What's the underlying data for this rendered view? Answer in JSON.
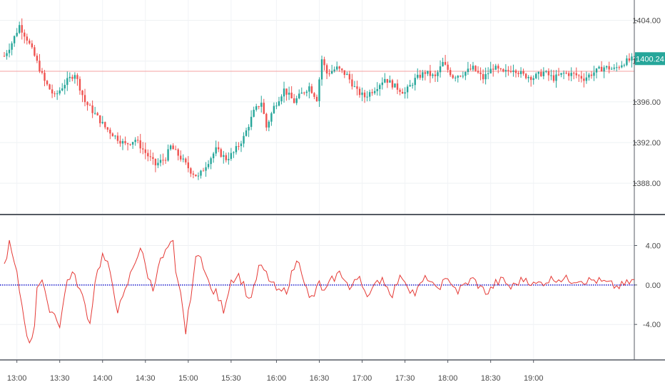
{
  "chart_data": [
    {
      "type": "candlestick",
      "panel": "price",
      "ylim": [
        1385.0,
        1406.0
      ],
      "y_ticks": [
        "1404.00",
        "1400.00",
        "1396.00",
        "1392.00",
        "1388.00"
      ],
      "y_tick_values": [
        1404,
        1400,
        1396,
        1392,
        1388
      ],
      "reference_line": 1399.0,
      "last_price_label": "1400.24",
      "last_price": 1400.24,
      "colors": {
        "up": "#26a69a",
        "down": "#ef5350",
        "reference": "#f4a0a0",
        "last_price_bg": "#26a69a"
      },
      "candle_path": [
        [
          0,
          1400.5
        ],
        [
          3,
          1401.8
        ],
        [
          6,
          1403.5
        ],
        [
          9,
          1402.2
        ],
        [
          12,
          1400.5
        ],
        [
          16,
          1398.0
        ],
        [
          20,
          1396.5
        ],
        [
          24,
          1397.8
        ],
        [
          28,
          1398.8
        ],
        [
          32,
          1396.0
        ],
        [
          36,
          1394.8
        ],
        [
          40,
          1393.5
        ],
        [
          44,
          1392.6
        ],
        [
          48,
          1391.8
        ],
        [
          52,
          1392.3
        ],
        [
          56,
          1391.0
        ],
        [
          60,
          1389.8
        ],
        [
          64,
          1390.5
        ],
        [
          66,
          1391.6
        ],
        [
          70,
          1390.5
        ],
        [
          74,
          1389.2
        ],
        [
          77,
          1388.6
        ],
        [
          80,
          1389.8
        ],
        [
          84,
          1391.3
        ],
        [
          88,
          1390.4
        ],
        [
          91,
          1391.0
        ],
        [
          95,
          1392.5
        ],
        [
          99,
          1395.0
        ],
        [
          102,
          1396.0
        ],
        [
          104,
          1393.5
        ],
        [
          107,
          1395.5
        ],
        [
          111,
          1397.2
        ],
        [
          115,
          1396.0
        ],
        [
          118,
          1396.8
        ],
        [
          121,
          1397.5
        ],
        [
          124,
          1396.3
        ],
        [
          126,
          1400.2
        ],
        [
          128,
          1398.8
        ],
        [
          132,
          1399.3
        ],
        [
          136,
          1398.6
        ],
        [
          140,
          1397.0
        ],
        [
          143,
          1396.5
        ],
        [
          147,
          1397.3
        ],
        [
          151,
          1398.3
        ],
        [
          155,
          1397.5
        ],
        [
          159,
          1396.9
        ],
        [
          163,
          1398.2
        ],
        [
          167,
          1398.9
        ],
        [
          171,
          1398.4
        ],
        [
          174,
          1399.8
        ],
        [
          178,
          1398.5
        ],
        [
          182,
          1398.8
        ],
        [
          186,
          1399.3
        ],
        [
          190,
          1398.3
        ],
        [
          194,
          1399.4
        ],
        [
          198,
          1398.8
        ],
        [
          202,
          1399.3
        ],
        [
          206,
          1398.6
        ],
        [
          210,
          1398.4
        ],
        [
          214,
          1398.9
        ],
        [
          218,
          1398.3
        ],
        [
          222,
          1398.8
        ],
        [
          226,
          1398.7
        ],
        [
          230,
          1398.3
        ],
        [
          234,
          1398.9
        ],
        [
          238,
          1399.4
        ],
        [
          242,
          1399.2
        ],
        [
          246,
          1399.9
        ],
        [
          250,
          1400.24
        ]
      ]
    },
    {
      "type": "line",
      "panel": "oscillator",
      "ylim": [
        -7.6,
        7.0
      ],
      "y_ticks": [
        "4.00",
        "0.00",
        "-4.00"
      ],
      "y_tick_values": [
        4,
        0,
        -4
      ],
      "zero_line": 0.0,
      "colors": {
        "line": "#e53935",
        "zero_line": "#1a1acc"
      },
      "series_path": [
        [
          0,
          2.0
        ],
        [
          2,
          4.2
        ],
        [
          5,
          1.0
        ],
        [
          8,
          -3.5
        ],
        [
          10,
          -6.2
        ],
        [
          12,
          -4.0
        ],
        [
          13,
          0.0
        ],
        [
          15,
          0.5
        ],
        [
          17,
          -2.0
        ],
        [
          20,
          -3.0
        ],
        [
          22,
          -4.0
        ],
        [
          25,
          0.5
        ],
        [
          27,
          1.2
        ],
        [
          29,
          0.2
        ],
        [
          32,
          -2.0
        ],
        [
          34,
          -4.0
        ],
        [
          36,
          0.5
        ],
        [
          39,
          3.0
        ],
        [
          41,
          2.0
        ],
        [
          43,
          0.0
        ],
        [
          45,
          -2.5
        ],
        [
          47,
          -1.5
        ],
        [
          50,
          1.0
        ],
        [
          52,
          2.5
        ],
        [
          54,
          3.8
        ],
        [
          57,
          1.0
        ],
        [
          59,
          -0.5
        ],
        [
          61,
          2.0
        ],
        [
          63,
          2.8
        ],
        [
          65,
          3.8
        ],
        [
          67,
          4.2
        ],
        [
          68,
          1.0
        ],
        [
          70,
          -1.0
        ],
        [
          71,
          -2.5
        ],
        [
          72,
          -5.0
        ],
        [
          74,
          -1.0
        ],
        [
          76,
          2.5
        ],
        [
          78,
          3.2
        ],
        [
          80,
          1.0
        ],
        [
          82,
          -0.5
        ],
        [
          84,
          -0.8
        ],
        [
          87,
          -2.5
        ],
        [
          90,
          0.5
        ],
        [
          93,
          1.0
        ],
        [
          95,
          0.0
        ],
        [
          97,
          -1.5
        ],
        [
          99,
          -0.5
        ],
        [
          101,
          1.8
        ],
        [
          103,
          1.5
        ],
        [
          106,
          0.2
        ],
        [
          109,
          -0.8
        ],
        [
          112,
          -0.5
        ],
        [
          115,
          1.8
        ],
        [
          117,
          2.6
        ],
        [
          119,
          0.5
        ],
        [
          121,
          -1.5
        ],
        [
          123,
          -1.0
        ],
        [
          125,
          0.2
        ],
        [
          127,
          -0.8
        ],
        [
          130,
          0.5
        ],
        [
          133,
          1.2
        ],
        [
          135,
          0.8
        ],
        [
          137,
          -0.5
        ],
        [
          139,
          0.2
        ],
        [
          141,
          1.0
        ],
        [
          143,
          -0.5
        ],
        [
          145,
          -1.0
        ],
        [
          148,
          0.2
        ],
        [
          150,
          0.8
        ],
        [
          152,
          -0.3
        ],
        [
          154,
          -0.9
        ],
        [
          156,
          0.3
        ],
        [
          158,
          0.9
        ],
        [
          161,
          -0.4
        ],
        [
          163,
          -0.9
        ],
        [
          166,
          0.3
        ],
        [
          168,
          0.8
        ],
        [
          171,
          -0.5
        ],
        [
          174,
          0.2
        ],
        [
          177,
          0.5
        ],
        [
          180,
          -0.7
        ],
        [
          183,
          0.1
        ],
        [
          186,
          0.6
        ],
        [
          189,
          -0.3
        ],
        [
          192,
          -0.8
        ],
        [
          195,
          0.2
        ],
        [
          198,
          0.5
        ],
        [
          201,
          -0.3
        ],
        [
          204,
          0.3
        ],
        [
          207,
          0.7
        ],
        [
          210,
          0.0
        ],
        [
          213,
          0.2
        ],
        [
          216,
          0.5
        ],
        [
          219,
          0.7
        ],
        [
          222,
          0.6
        ],
        [
          225,
          0.5
        ],
        [
          228,
          0.6
        ],
        [
          231,
          0.4
        ],
        [
          234,
          0.5
        ],
        [
          237,
          0.3
        ],
        [
          240,
          0.1
        ],
        [
          243,
          -0.2
        ],
        [
          246,
          0.0
        ],
        [
          250,
          0.5
        ]
      ]
    }
  ],
  "x_axis": {
    "labels": [
      "13:00",
      "13:30",
      "14:00",
      "14:30",
      "15:00",
      "15:30",
      "16:00",
      "16:30",
      "17:00",
      "17:30",
      "18:00",
      "18:30",
      "19:00"
    ],
    "label_index": [
      5,
      22,
      39,
      56,
      73,
      90,
      108,
      125,
      142,
      159,
      176,
      193,
      210
    ],
    "bar_count": 251
  }
}
